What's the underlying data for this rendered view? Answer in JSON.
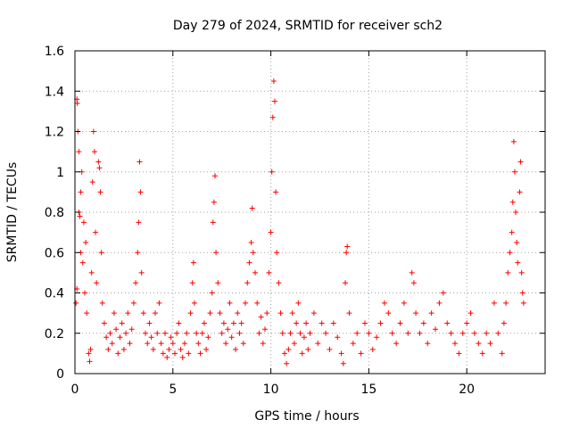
{
  "chart_data": {
    "type": "scatter",
    "title": "Day 279 of 2024, SRMTID for receiver sch2",
    "xlabel": "GPS time / hours",
    "ylabel": "SRMTID / TECUs",
    "xlim": [
      0,
      24
    ],
    "ylim": [
      0,
      1.6
    ],
    "xticks": [
      0,
      5,
      10,
      15,
      20
    ],
    "yticks": [
      0,
      0.2,
      0.4,
      0.6,
      0.8,
      1,
      1.2,
      1.4,
      1.6
    ],
    "xtick_labels": [
      "0",
      "5",
      "10",
      "15",
      "20"
    ],
    "ytick_labels": [
      "0",
      "0.2",
      "0.4",
      "0.6",
      "0.8",
      "1",
      "1.2",
      "1.4",
      "1.6"
    ],
    "grid": true,
    "marker": "+",
    "color": "#ff0000",
    "series": [
      {
        "name": "sch2",
        "points": [
          [
            0.05,
            0.35
          ],
          [
            0.1,
            0.42
          ],
          [
            0.1,
            1.36
          ],
          [
            0.12,
            1.34
          ],
          [
            0.15,
            1.2
          ],
          [
            0.2,
            1.1
          ],
          [
            0.2,
            0.8
          ],
          [
            0.25,
            0.78
          ],
          [
            0.3,
            0.6
          ],
          [
            0.3,
            0.9
          ],
          [
            0.35,
            1.0
          ],
          [
            0.4,
            0.55
          ],
          [
            0.45,
            0.75
          ],
          [
            0.5,
            0.4
          ],
          [
            0.55,
            0.65
          ],
          [
            0.6,
            0.3
          ],
          [
            0.7,
            0.1
          ],
          [
            0.75,
            0.06
          ],
          [
            0.8,
            0.12
          ],
          [
            0.85,
            0.5
          ],
          [
            0.9,
            0.95
          ],
          [
            0.95,
            1.2
          ],
          [
            1.0,
            1.1
          ],
          [
            1.05,
            0.7
          ],
          [
            1.1,
            0.45
          ],
          [
            1.2,
            1.05
          ],
          [
            1.25,
            1.02
          ],
          [
            1.3,
            0.9
          ],
          [
            1.35,
            0.6
          ],
          [
            1.4,
            0.35
          ],
          [
            1.5,
            0.25
          ],
          [
            1.6,
            0.18
          ],
          [
            1.7,
            0.12
          ],
          [
            1.8,
            0.2
          ],
          [
            1.9,
            0.15
          ],
          [
            2.0,
            0.3
          ],
          [
            2.1,
            0.22
          ],
          [
            2.2,
            0.1
          ],
          [
            2.3,
            0.18
          ],
          [
            2.4,
            0.25
          ],
          [
            2.5,
            0.12
          ],
          [
            2.6,
            0.2
          ],
          [
            2.7,
            0.3
          ],
          [
            2.8,
            0.15
          ],
          [
            2.9,
            0.22
          ],
          [
            3.0,
            0.35
          ],
          [
            3.1,
            0.45
          ],
          [
            3.2,
            0.6
          ],
          [
            3.25,
            0.75
          ],
          [
            3.3,
            1.05
          ],
          [
            3.35,
            0.9
          ],
          [
            3.4,
            0.5
          ],
          [
            3.5,
            0.3
          ],
          [
            3.6,
            0.2
          ],
          [
            3.7,
            0.15
          ],
          [
            3.8,
            0.25
          ],
          [
            3.9,
            0.18
          ],
          [
            4.0,
            0.12
          ],
          [
            4.1,
            0.3
          ],
          [
            4.2,
            0.2
          ],
          [
            4.3,
            0.35
          ],
          [
            4.4,
            0.15
          ],
          [
            4.5,
            0.1
          ],
          [
            4.6,
            0.2
          ],
          [
            4.7,
            0.08
          ],
          [
            4.8,
            0.12
          ],
          [
            4.9,
            0.18
          ],
          [
            5.0,
            0.15
          ],
          [
            5.1,
            0.1
          ],
          [
            5.2,
            0.2
          ],
          [
            5.3,
            0.25
          ],
          [
            5.4,
            0.12
          ],
          [
            5.5,
            0.08
          ],
          [
            5.6,
            0.15
          ],
          [
            5.7,
            0.2
          ],
          [
            5.8,
            0.1
          ],
          [
            5.9,
            0.3
          ],
          [
            6.0,
            0.45
          ],
          [
            6.05,
            0.55
          ],
          [
            6.1,
            0.35
          ],
          [
            6.2,
            0.2
          ],
          [
            6.3,
            0.15
          ],
          [
            6.4,
            0.1
          ],
          [
            6.5,
            0.2
          ],
          [
            6.6,
            0.25
          ],
          [
            6.7,
            0.12
          ],
          [
            6.8,
            0.18
          ],
          [
            6.9,
            0.3
          ],
          [
            7.0,
            0.4
          ],
          [
            7.05,
            0.75
          ],
          [
            7.1,
            0.85
          ],
          [
            7.15,
            0.98
          ],
          [
            7.2,
            0.6
          ],
          [
            7.3,
            0.45
          ],
          [
            7.4,
            0.3
          ],
          [
            7.5,
            0.2
          ],
          [
            7.6,
            0.25
          ],
          [
            7.7,
            0.15
          ],
          [
            7.8,
            0.22
          ],
          [
            7.9,
            0.35
          ],
          [
            8.0,
            0.18
          ],
          [
            8.1,
            0.25
          ],
          [
            8.2,
            0.12
          ],
          [
            8.3,
            0.3
          ],
          [
            8.4,
            0.2
          ],
          [
            8.5,
            0.25
          ],
          [
            8.6,
            0.15
          ],
          [
            8.7,
            0.35
          ],
          [
            8.8,
            0.45
          ],
          [
            8.9,
            0.55
          ],
          [
            9.0,
            0.65
          ],
          [
            9.05,
            0.82
          ],
          [
            9.1,
            0.6
          ],
          [
            9.2,
            0.5
          ],
          [
            9.3,
            0.35
          ],
          [
            9.4,
            0.2
          ],
          [
            9.5,
            0.28
          ],
          [
            9.6,
            0.15
          ],
          [
            9.7,
            0.22
          ],
          [
            9.8,
            0.3
          ],
          [
            9.9,
            0.5
          ],
          [
            10.0,
            0.7
          ],
          [
            10.05,
            1.0
          ],
          [
            10.1,
            1.27
          ],
          [
            10.15,
            1.45
          ],
          [
            10.2,
            1.35
          ],
          [
            10.25,
            0.9
          ],
          [
            10.3,
            0.6
          ],
          [
            10.4,
            0.45
          ],
          [
            10.5,
            0.3
          ],
          [
            10.6,
            0.2
          ],
          [
            10.7,
            0.1
          ],
          [
            10.8,
            0.05
          ],
          [
            10.9,
            0.12
          ],
          [
            11.0,
            0.2
          ],
          [
            11.1,
            0.3
          ],
          [
            11.2,
            0.15
          ],
          [
            11.3,
            0.25
          ],
          [
            11.4,
            0.35
          ],
          [
            11.5,
            0.2
          ],
          [
            11.6,
            0.1
          ],
          [
            11.7,
            0.18
          ],
          [
            11.8,
            0.25
          ],
          [
            11.9,
            0.12
          ],
          [
            12.0,
            0.2
          ],
          [
            12.2,
            0.3
          ],
          [
            12.4,
            0.15
          ],
          [
            12.6,
            0.25
          ],
          [
            12.8,
            0.2
          ],
          [
            13.0,
            0.12
          ],
          [
            13.2,
            0.25
          ],
          [
            13.4,
            0.18
          ],
          [
            13.6,
            0.1
          ],
          [
            13.7,
            0.05
          ],
          [
            13.8,
            0.45
          ],
          [
            13.85,
            0.6
          ],
          [
            13.9,
            0.63
          ],
          [
            14.0,
            0.3
          ],
          [
            14.2,
            0.15
          ],
          [
            14.4,
            0.2
          ],
          [
            14.6,
            0.1
          ],
          [
            14.8,
            0.25
          ],
          [
            15.0,
            0.2
          ],
          [
            15.2,
            0.12
          ],
          [
            15.4,
            0.18
          ],
          [
            15.6,
            0.25
          ],
          [
            15.8,
            0.35
          ],
          [
            16.0,
            0.3
          ],
          [
            16.2,
            0.2
          ],
          [
            16.4,
            0.15
          ],
          [
            16.6,
            0.25
          ],
          [
            16.8,
            0.35
          ],
          [
            17.0,
            0.2
          ],
          [
            17.2,
            0.5
          ],
          [
            17.3,
            0.45
          ],
          [
            17.4,
            0.3
          ],
          [
            17.6,
            0.2
          ],
          [
            17.8,
            0.25
          ],
          [
            18.0,
            0.15
          ],
          [
            18.2,
            0.3
          ],
          [
            18.4,
            0.22
          ],
          [
            18.6,
            0.35
          ],
          [
            18.8,
            0.4
          ],
          [
            19.0,
            0.25
          ],
          [
            19.2,
            0.2
          ],
          [
            19.4,
            0.15
          ],
          [
            19.6,
            0.1
          ],
          [
            19.8,
            0.2
          ],
          [
            20.0,
            0.25
          ],
          [
            20.2,
            0.3
          ],
          [
            20.4,
            0.2
          ],
          [
            20.6,
            0.15
          ],
          [
            20.8,
            0.1
          ],
          [
            21.0,
            0.2
          ],
          [
            21.2,
            0.15
          ],
          [
            21.4,
            0.35
          ],
          [
            21.6,
            0.2
          ],
          [
            21.8,
            0.1
          ],
          [
            21.9,
            0.25
          ],
          [
            22.0,
            0.35
          ],
          [
            22.1,
            0.5
          ],
          [
            22.2,
            0.6
          ],
          [
            22.3,
            0.7
          ],
          [
            22.35,
            0.85
          ],
          [
            22.4,
            1.15
          ],
          [
            22.45,
            1.0
          ],
          [
            22.5,
            0.8
          ],
          [
            22.55,
            0.65
          ],
          [
            22.6,
            0.55
          ],
          [
            22.7,
            0.9
          ],
          [
            22.75,
            1.05
          ],
          [
            22.8,
            0.5
          ],
          [
            22.85,
            0.4
          ],
          [
            22.9,
            0.35
          ]
        ]
      }
    ]
  }
}
